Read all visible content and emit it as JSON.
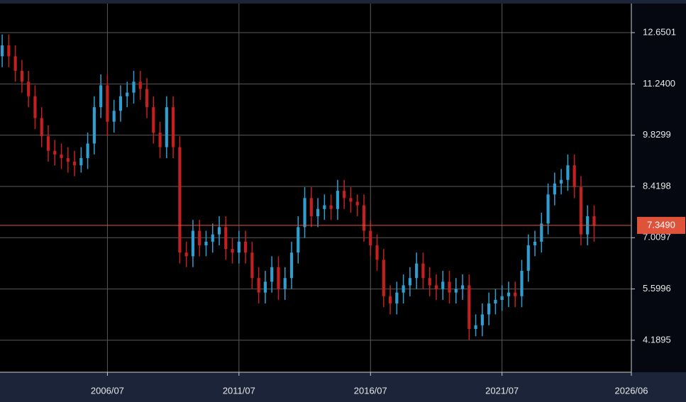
{
  "chart_data": {
    "type": "candlestick",
    "x": [
      "2002/07",
      "2002/10",
      "2003/01",
      "2003/04",
      "2003/07",
      "2003/10",
      "2004/01",
      "2004/04",
      "2004/07",
      "2004/10",
      "2005/01",
      "2005/04",
      "2005/07",
      "2005/10",
      "2006/01",
      "2006/04",
      "2006/07",
      "2006/10",
      "2007/01",
      "2007/04",
      "2007/07",
      "2007/10",
      "2008/01",
      "2008/04",
      "2008/07",
      "2008/10",
      "2009/01",
      "2009/04",
      "2009/07",
      "2009/10",
      "2010/01",
      "2010/04",
      "2010/07",
      "2010/10",
      "2011/01",
      "2011/04",
      "2011/07",
      "2011/10",
      "2012/01",
      "2012/04",
      "2012/07",
      "2012/10",
      "2013/01",
      "2013/04",
      "2013/07",
      "2013/10",
      "2014/01",
      "2014/04",
      "2014/07",
      "2014/10",
      "2015/01",
      "2015/04",
      "2015/07",
      "2015/10",
      "2016/01",
      "2016/04",
      "2016/07",
      "2016/10",
      "2017/01",
      "2017/04",
      "2017/07",
      "2017/10",
      "2018/01",
      "2018/04",
      "2018/07",
      "2018/10",
      "2019/01",
      "2019/04",
      "2019/07",
      "2019/10",
      "2020/01",
      "2020/04",
      "2020/07",
      "2020/10",
      "2021/01",
      "2021/04",
      "2021/07",
      "2021/10",
      "2022/01",
      "2022/04",
      "2022/07",
      "2022/10",
      "2023/01",
      "2023/04",
      "2023/07",
      "2023/10",
      "2024/01",
      "2024/04",
      "2024/07",
      "2024/10",
      "2025/01"
    ],
    "ohlc": [
      [
        12.0,
        12.6,
        11.7,
        12.3
      ],
      [
        12.3,
        12.6,
        11.7,
        12.0
      ],
      [
        12.0,
        12.3,
        11.3,
        11.6
      ],
      [
        11.6,
        11.9,
        11.0,
        11.3
      ],
      [
        11.3,
        11.6,
        10.6,
        10.9
      ],
      [
        10.9,
        11.2,
        10.0,
        10.3
      ],
      [
        10.3,
        10.6,
        9.5,
        9.8
      ],
      [
        9.8,
        10.1,
        9.1,
        9.4
      ],
      [
        9.4,
        9.7,
        9.0,
        9.3
      ],
      [
        9.3,
        9.6,
        8.9,
        9.2
      ],
      [
        9.2,
        9.5,
        8.8,
        9.1
      ],
      [
        9.1,
        9.4,
        8.7,
        9.0
      ],
      [
        9.0,
        9.5,
        8.8,
        9.2
      ],
      [
        9.2,
        9.9,
        8.9,
        9.6
      ],
      [
        9.6,
        10.9,
        9.3,
        10.6
      ],
      [
        10.6,
        11.5,
        10.3,
        11.2
      ],
      [
        11.2,
        11.5,
        9.8,
        10.2
      ],
      [
        10.2,
        10.8,
        9.9,
        10.5
      ],
      [
        10.5,
        11.2,
        10.2,
        10.9
      ],
      [
        10.9,
        11.3,
        10.6,
        11.0
      ],
      [
        11.0,
        11.6,
        10.7,
        11.3
      ],
      [
        11.3,
        11.6,
        10.8,
        11.1
      ],
      [
        11.1,
        11.4,
        10.3,
        10.6
      ],
      [
        10.6,
        10.9,
        9.6,
        9.9
      ],
      [
        9.9,
        10.2,
        9.2,
        9.5
      ],
      [
        9.5,
        10.9,
        9.2,
        10.6
      ],
      [
        10.6,
        10.9,
        9.2,
        9.5
      ],
      [
        9.5,
        9.8,
        6.3,
        6.6
      ],
      [
        6.6,
        6.9,
        6.2,
        6.5
      ],
      [
        6.5,
        7.5,
        6.2,
        7.2
      ],
      [
        7.2,
        7.5,
        6.5,
        6.8
      ],
      [
        6.8,
        7.2,
        6.5,
        6.9
      ],
      [
        6.9,
        7.4,
        6.6,
        7.1
      ],
      [
        7.1,
        7.6,
        6.8,
        7.3
      ],
      [
        7.3,
        7.6,
        6.4,
        6.7
      ],
      [
        6.7,
        7.0,
        6.3,
        6.6
      ],
      [
        6.6,
        7.2,
        6.3,
        6.9
      ],
      [
        6.9,
        7.2,
        6.3,
        6.6
      ],
      [
        6.6,
        6.9,
        5.6,
        5.9
      ],
      [
        5.9,
        6.2,
        5.2,
        5.5
      ],
      [
        5.5,
        6.1,
        5.2,
        5.8
      ],
      [
        5.8,
        6.5,
        5.5,
        6.2
      ],
      [
        6.2,
        6.5,
        5.3,
        5.6
      ],
      [
        5.6,
        6.2,
        5.3,
        5.9
      ],
      [
        5.9,
        6.9,
        5.6,
        6.6
      ],
      [
        6.6,
        7.6,
        6.3,
        7.3
      ],
      [
        7.3,
        8.4,
        7.0,
        8.1
      ],
      [
        8.1,
        8.4,
        7.3,
        7.6
      ],
      [
        7.6,
        8.1,
        7.3,
        7.8
      ],
      [
        7.8,
        8.2,
        7.5,
        7.9
      ],
      [
        7.9,
        8.2,
        7.5,
        7.8
      ],
      [
        7.8,
        8.6,
        7.5,
        8.3
      ],
      [
        8.3,
        8.6,
        7.8,
        8.1
      ],
      [
        8.1,
        8.4,
        7.7,
        8.0
      ],
      [
        8.0,
        8.2,
        7.6,
        7.9
      ],
      [
        7.9,
        8.2,
        6.9,
        7.2
      ],
      [
        7.2,
        7.5,
        6.5,
        6.8
      ],
      [
        6.8,
        7.1,
        6.1,
        6.4
      ],
      [
        6.4,
        6.7,
        5.1,
        5.4
      ],
      [
        5.4,
        5.7,
        4.9,
        5.2
      ],
      [
        5.2,
        5.8,
        4.9,
        5.5
      ],
      [
        5.5,
        6.0,
        5.2,
        5.7
      ],
      [
        5.7,
        6.2,
        5.4,
        5.9
      ],
      [
        5.9,
        6.6,
        5.6,
        6.3
      ],
      [
        6.3,
        6.6,
        5.6,
        5.9
      ],
      [
        5.9,
        6.2,
        5.4,
        5.7
      ],
      [
        5.7,
        6.0,
        5.3,
        5.6
      ],
      [
        5.6,
        6.1,
        5.3,
        5.8
      ],
      [
        5.8,
        6.1,
        5.2,
        5.5
      ],
      [
        5.5,
        5.9,
        5.2,
        5.6
      ],
      [
        5.6,
        6.0,
        5.3,
        5.7
      ],
      [
        5.7,
        6.0,
        4.2,
        4.5
      ],
      [
        4.5,
        4.9,
        4.3,
        4.6
      ],
      [
        4.6,
        5.2,
        4.3,
        4.9
      ],
      [
        4.9,
        5.5,
        4.6,
        5.2
      ],
      [
        5.2,
        5.6,
        4.9,
        5.3
      ],
      [
        5.3,
        5.7,
        5.0,
        5.4
      ],
      [
        5.4,
        5.8,
        5.1,
        5.5
      ],
      [
        5.5,
        5.8,
        5.1,
        5.4
      ],
      [
        5.4,
        6.4,
        5.1,
        6.1
      ],
      [
        6.1,
        7.1,
        5.8,
        6.8
      ],
      [
        6.8,
        7.2,
        6.5,
        6.9
      ],
      [
        6.9,
        7.7,
        6.6,
        7.4
      ],
      [
        7.4,
        8.5,
        7.1,
        8.2
      ],
      [
        8.2,
        8.8,
        7.9,
        8.5
      ],
      [
        8.5,
        8.9,
        8.2,
        8.6
      ],
      [
        8.6,
        9.3,
        8.3,
        9.0
      ],
      [
        9.0,
        9.3,
        8.1,
        8.4
      ],
      [
        8.4,
        8.7,
        6.8,
        7.1
      ],
      [
        7.1,
        7.9,
        6.8,
        7.6
      ],
      [
        7.6,
        7.9,
        6.9,
        7.35
      ]
    ],
    "up_color": "#2e9fd0",
    "down_color": "#c3201f",
    "xlim": [
      "2002/06",
      "2026/06"
    ],
    "xticks": [
      "2006/07",
      "2011/07",
      "2016/07",
      "2021/07",
      "2026/06"
    ],
    "ylim": [
      3.31,
      13.45
    ],
    "yticks": [
      {
        "value": 4.1895,
        "label": "4.1895"
      },
      {
        "value": 5.5996,
        "label": "5.5996"
      },
      {
        "value": 7.0097,
        "label": "7.0097"
      },
      {
        "value": 8.4198,
        "label": "8.4198"
      },
      {
        "value": 9.8299,
        "label": "9.8299"
      },
      {
        "value": 11.24,
        "label": "11.2400"
      },
      {
        "value": 12.6501,
        "label": "12.6501"
      }
    ],
    "grid": true,
    "last_price": {
      "value": 7.349,
      "label": "7.3490"
    },
    "last_price_color": "#e0533b"
  }
}
